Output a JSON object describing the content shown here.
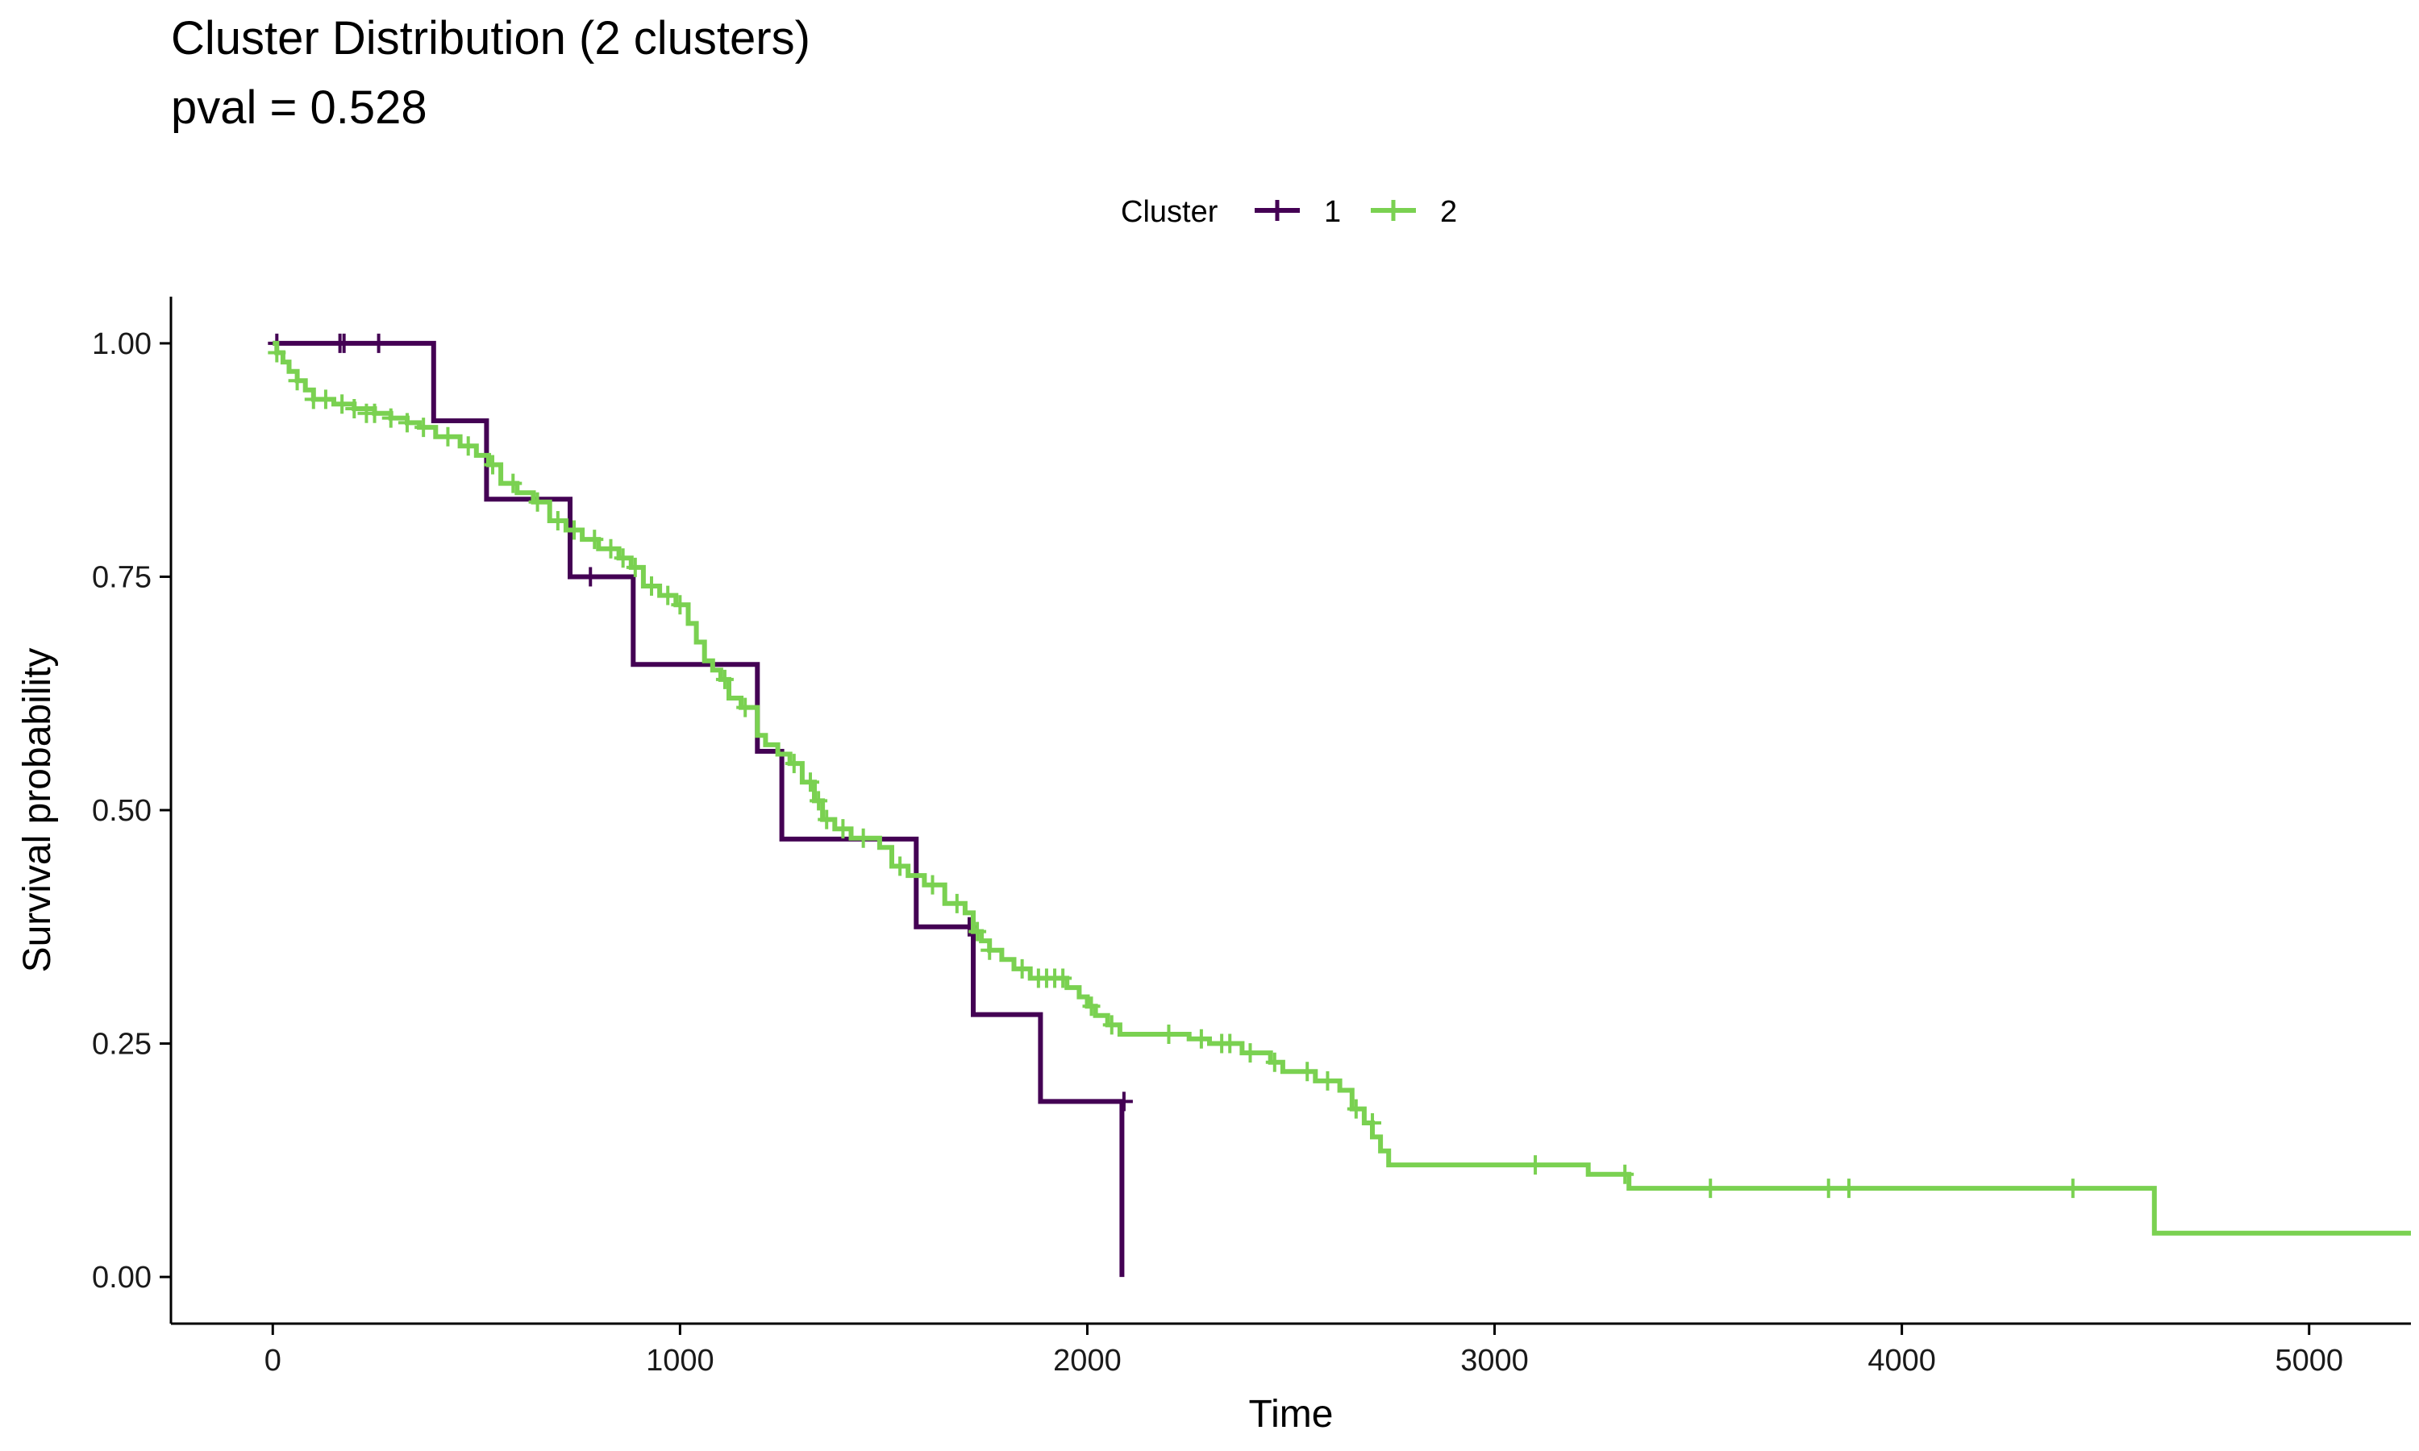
{
  "chart_data": {
    "type": "line",
    "title": "Cluster Distribution (2 clusters)",
    "subtitle": "pval = 0.528",
    "xlabel": "Time",
    "ylabel": "Survival probability",
    "xlim": [
      -250,
      5250
    ],
    "ylim": [
      -0.05,
      1.05
    ],
    "x_ticks": [
      0,
      1000,
      2000,
      3000,
      4000,
      5000
    ],
    "y_ticks": [
      0.0,
      0.25,
      0.5,
      0.75,
      1.0
    ],
    "y_tick_labels": [
      "0.00",
      "0.25",
      "0.50",
      "0.75",
      "1.00"
    ],
    "grid": false,
    "legend": {
      "title": "Cluster",
      "placement": "top",
      "entries": [
        "1",
        "2"
      ]
    },
    "series": [
      {
        "name": "1",
        "color": "#440154",
        "steps": [
          [
            0,
            1.0
          ],
          [
            395,
            0.917
          ],
          [
            525,
            0.833
          ],
          [
            730,
            0.75
          ],
          [
            885,
            0.656
          ],
          [
            1190,
            0.563
          ],
          [
            1250,
            0.469
          ],
          [
            1580,
            0.375
          ],
          [
            1720,
            0.281
          ],
          [
            1885,
            0.188
          ],
          [
            2085,
            0.0
          ]
        ],
        "censor": [
          [
            10,
            1.0
          ],
          [
            165,
            1.0
          ],
          [
            175,
            1.0
          ],
          [
            260,
            1.0
          ],
          [
            780,
            0.75
          ],
          [
            1710,
            0.375
          ],
          [
            2090,
            0.188
          ]
        ]
      },
      {
        "name": "2",
        "color": "#7AD151",
        "steps": [
          [
            0,
            1.0
          ],
          [
            10,
            0.99
          ],
          [
            25,
            0.98
          ],
          [
            40,
            0.97
          ],
          [
            60,
            0.96
          ],
          [
            80,
            0.95
          ],
          [
            100,
            0.94
          ],
          [
            150,
            0.935
          ],
          [
            200,
            0.93
          ],
          [
            250,
            0.925
          ],
          [
            290,
            0.92
          ],
          [
            330,
            0.915
          ],
          [
            360,
            0.91
          ],
          [
            400,
            0.9
          ],
          [
            460,
            0.89
          ],
          [
            500,
            0.88
          ],
          [
            530,
            0.87
          ],
          [
            560,
            0.85
          ],
          [
            600,
            0.84
          ],
          [
            640,
            0.83
          ],
          [
            680,
            0.81
          ],
          [
            720,
            0.8
          ],
          [
            760,
            0.79
          ],
          [
            800,
            0.78
          ],
          [
            850,
            0.77
          ],
          [
            880,
            0.76
          ],
          [
            910,
            0.74
          ],
          [
            950,
            0.73
          ],
          [
            990,
            0.72
          ],
          [
            1020,
            0.7
          ],
          [
            1040,
            0.68
          ],
          [
            1060,
            0.66
          ],
          [
            1080,
            0.65
          ],
          [
            1100,
            0.64
          ],
          [
            1120,
            0.62
          ],
          [
            1150,
            0.61
          ],
          [
            1190,
            0.58
          ],
          [
            1210,
            0.57
          ],
          [
            1240,
            0.56
          ],
          [
            1270,
            0.55
          ],
          [
            1300,
            0.53
          ],
          [
            1330,
            0.51
          ],
          [
            1350,
            0.49
          ],
          [
            1380,
            0.48
          ],
          [
            1420,
            0.47
          ],
          [
            1490,
            0.46
          ],
          [
            1520,
            0.44
          ],
          [
            1560,
            0.43
          ],
          [
            1600,
            0.42
          ],
          [
            1650,
            0.4
          ],
          [
            1700,
            0.39
          ],
          [
            1720,
            0.37
          ],
          [
            1740,
            0.36
          ],
          [
            1760,
            0.35
          ],
          [
            1790,
            0.34
          ],
          [
            1820,
            0.33
          ],
          [
            1860,
            0.32
          ],
          [
            1950,
            0.31
          ],
          [
            1980,
            0.3
          ],
          [
            2000,
            0.29
          ],
          [
            2020,
            0.28
          ],
          [
            2050,
            0.27
          ],
          [
            2080,
            0.26
          ],
          [
            2250,
            0.255
          ],
          [
            2300,
            0.25
          ],
          [
            2380,
            0.24
          ],
          [
            2450,
            0.23
          ],
          [
            2480,
            0.22
          ],
          [
            2560,
            0.21
          ],
          [
            2620,
            0.2
          ],
          [
            2650,
            0.18
          ],
          [
            2680,
            0.165
          ],
          [
            2700,
            0.15
          ],
          [
            2720,
            0.135
          ],
          [
            2740,
            0.12
          ],
          [
            3230,
            0.11
          ],
          [
            3330,
            0.095
          ],
          [
            4620,
            0.047
          ]
        ],
        "censor": [
          [
            10,
            0.99
          ],
          [
            60,
            0.96
          ],
          [
            100,
            0.94
          ],
          [
            130,
            0.94
          ],
          [
            170,
            0.935
          ],
          [
            200,
            0.93
          ],
          [
            230,
            0.925
          ],
          [
            250,
            0.925
          ],
          [
            290,
            0.92
          ],
          [
            330,
            0.915
          ],
          [
            370,
            0.91
          ],
          [
            430,
            0.9
          ],
          [
            480,
            0.89
          ],
          [
            540,
            0.87
          ],
          [
            590,
            0.85
          ],
          [
            650,
            0.83
          ],
          [
            700,
            0.81
          ],
          [
            740,
            0.8
          ],
          [
            790,
            0.79
          ],
          [
            830,
            0.78
          ],
          [
            860,
            0.77
          ],
          [
            890,
            0.76
          ],
          [
            930,
            0.74
          ],
          [
            970,
            0.73
          ],
          [
            1000,
            0.72
          ],
          [
            1110,
            0.64
          ],
          [
            1160,
            0.61
          ],
          [
            1280,
            0.55
          ],
          [
            1320,
            0.53
          ],
          [
            1340,
            0.51
          ],
          [
            1360,
            0.49
          ],
          [
            1400,
            0.48
          ],
          [
            1450,
            0.47
          ],
          [
            1540,
            0.44
          ],
          [
            1620,
            0.42
          ],
          [
            1680,
            0.4
          ],
          [
            1730,
            0.37
          ],
          [
            1760,
            0.35
          ],
          [
            1840,
            0.33
          ],
          [
            1880,
            0.32
          ],
          [
            1900,
            0.32
          ],
          [
            1920,
            0.32
          ],
          [
            1940,
            0.32
          ],
          [
            2010,
            0.29
          ],
          [
            2060,
            0.27
          ],
          [
            2200,
            0.26
          ],
          [
            2280,
            0.255
          ],
          [
            2330,
            0.25
          ],
          [
            2350,
            0.25
          ],
          [
            2400,
            0.24
          ],
          [
            2460,
            0.23
          ],
          [
            2540,
            0.22
          ],
          [
            2590,
            0.21
          ],
          [
            2660,
            0.18
          ],
          [
            2700,
            0.165
          ],
          [
            3100,
            0.12
          ],
          [
            3320,
            0.11
          ],
          [
            3530,
            0.095
          ],
          [
            3820,
            0.095
          ],
          [
            3870,
            0.095
          ],
          [
            4420,
            0.095
          ]
        ]
      }
    ]
  }
}
